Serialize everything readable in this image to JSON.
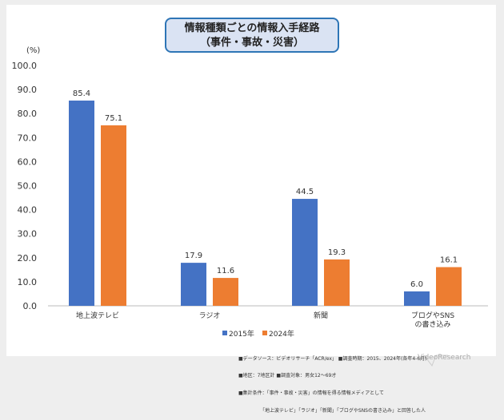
{
  "chart_data": {
    "type": "bar",
    "title": "情報種類ごとの情報入手経路",
    "subtitle": "（事件・事故・災害）",
    "ylabel": "(%)",
    "ylim": [
      0,
      100
    ],
    "yticks": [
      "0.0",
      "10.0",
      "20.0",
      "30.0",
      "40.0",
      "50.0",
      "60.0",
      "70.0",
      "80.0",
      "90.0",
      "100.0"
    ],
    "categories": [
      "地上波テレビ",
      "ラジオ",
      "新聞",
      "ブログやSNS\nの書き込み"
    ],
    "series": [
      {
        "name": "2015年",
        "color": "#4472c4",
        "values": [
          85.4,
          17.9,
          44.5,
          6.0
        ]
      },
      {
        "name": "2024年",
        "color": "#ed7d31",
        "values": [
          75.1,
          11.6,
          19.3,
          16.1
        ]
      }
    ],
    "legend": "bottom",
    "grid": false
  },
  "notes": [
    "■データソース：ビデオリサーチ「ACR/ex」 ■調査時期：2015、2024年(各年4-6月)",
    "■地区：7地区計 ■調査対象：男女12～69才",
    "■集計条件：「事件・事故・災害」の情報を得る情報メディアとして",
    "　　　　　「地上波テレビ」「ラジオ」「新聞」「ブログやSNSの書き込み」と回答した人"
  ],
  "logo": "VideoResearch"
}
